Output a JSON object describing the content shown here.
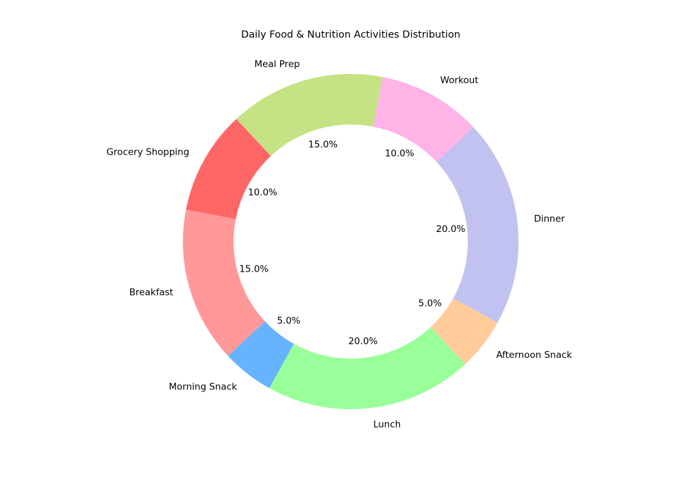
{
  "chart_data": {
    "type": "pie",
    "title": "Daily Food & Nutrition Activities Distribution",
    "donut": true,
    "start_angle_deg": 79,
    "direction": "counterclockwise",
    "autopct_format": "{:.1f}%",
    "slices": [
      {
        "label": "Meal Prep",
        "value": 15,
        "color": "#c5e384"
      },
      {
        "label": "Grocery Shopping",
        "value": 10,
        "color": "#ff6666"
      },
      {
        "label": "Breakfast",
        "value": 15,
        "color": "#ff9999"
      },
      {
        "label": "Morning Snack",
        "value": 5,
        "color": "#66b3ff"
      },
      {
        "label": "Lunch",
        "value": 20,
        "color": "#99ff99"
      },
      {
        "label": "Afternoon Snack",
        "value": 5,
        "color": "#ffcc99"
      },
      {
        "label": "Dinner",
        "value": 20,
        "color": "#c2c2f0"
      },
      {
        "label": "Workout",
        "value": 10,
        "color": "#ffb3e6"
      }
    ]
  }
}
